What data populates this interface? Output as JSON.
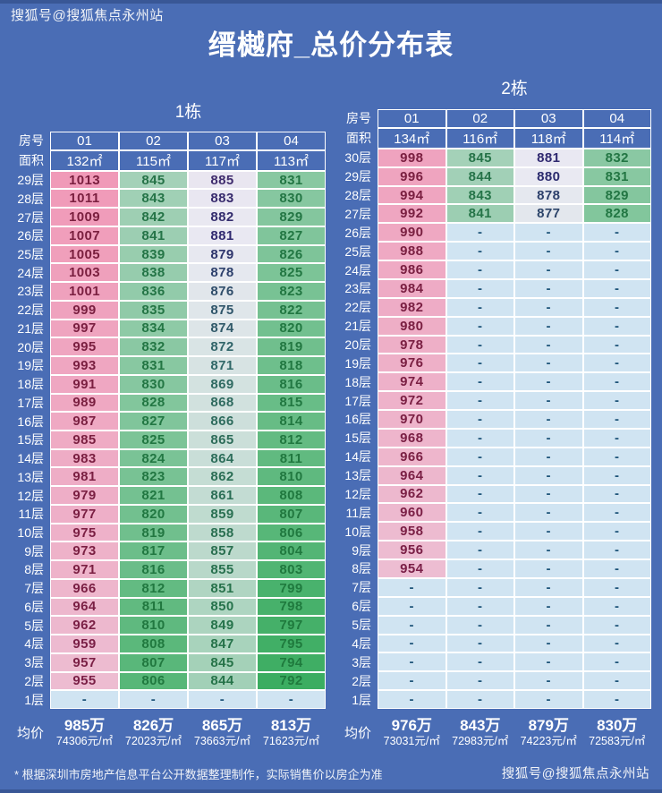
{
  "page": {
    "watermark_top": "搜狐号@搜狐焦点永州站",
    "title": "缙樾府_总价分布表",
    "footnote": "* 根据深圳市房地产信息平台公开数据整理制作，实际销售价以房企为准",
    "watermark_bottom": "搜狐号@搜狐焦点永州站",
    "background_color": "#4a6db5"
  },
  "color_scale": {
    "min_value": 792,
    "mid_value": 880,
    "max_value": 1013,
    "min_color": "#3bad61",
    "mid_color": "#e9e9f2",
    "max_color": "#f09ab8",
    "dash_bg": "#d0e4f2",
    "border_color": "#ffffff"
  },
  "chart_data": [
    {
      "type": "table",
      "name": "1栋",
      "row_header_label": "房号",
      "area_label": "面积",
      "avg_label": "均价",
      "rooms": [
        "01",
        "02",
        "03",
        "04"
      ],
      "areas": [
        "132㎡",
        "115㎡",
        "117㎡",
        "113㎡"
      ],
      "floors": [
        "29层",
        "28层",
        "27层",
        "26层",
        "25层",
        "24层",
        "23层",
        "22层",
        "21层",
        "20层",
        "19层",
        "18层",
        "17层",
        "16层",
        "15层",
        "14层",
        "13层",
        "12层",
        "11层",
        "10层",
        "9层",
        "8层",
        "7层",
        "6层",
        "5层",
        "4层",
        "3层",
        "2层",
        "1层"
      ],
      "values": [
        [
          1013,
          845,
          885,
          831
        ],
        [
          1011,
          843,
          883,
          830
        ],
        [
          1009,
          842,
          882,
          829
        ],
        [
          1007,
          841,
          881,
          827
        ],
        [
          1005,
          839,
          879,
          826
        ],
        [
          1003,
          838,
          878,
          825
        ],
        [
          1001,
          836,
          876,
          823
        ],
        [
          999,
          835,
          875,
          822
        ],
        [
          997,
          834,
          874,
          820
        ],
        [
          995,
          832,
          872,
          819
        ],
        [
          993,
          831,
          871,
          818
        ],
        [
          991,
          830,
          869,
          816
        ],
        [
          989,
          828,
          868,
          815
        ],
        [
          987,
          827,
          866,
          814
        ],
        [
          985,
          825,
          865,
          812
        ],
        [
          983,
          824,
          864,
          811
        ],
        [
          981,
          823,
          862,
          810
        ],
        [
          979,
          821,
          861,
          808
        ],
        [
          977,
          820,
          859,
          807
        ],
        [
          975,
          819,
          858,
          806
        ],
        [
          973,
          817,
          857,
          804
        ],
        [
          971,
          816,
          855,
          803
        ],
        [
          966,
          812,
          851,
          799
        ],
        [
          964,
          811,
          850,
          798
        ],
        [
          962,
          810,
          849,
          797
        ],
        [
          959,
          808,
          847,
          795
        ],
        [
          957,
          807,
          845,
          794
        ],
        [
          955,
          806,
          844,
          792
        ],
        [
          "-",
          "-",
          "-",
          "-"
        ]
      ],
      "averages": [
        {
          "price": "985万",
          "unit": "74306元/㎡"
        },
        {
          "price": "826万",
          "unit": "72023元/㎡"
        },
        {
          "price": "865万",
          "unit": "73663元/㎡"
        },
        {
          "price": "813万",
          "unit": "71623元/㎡"
        }
      ]
    },
    {
      "type": "table",
      "name": "2栋",
      "row_header_label": "房号",
      "area_label": "面积",
      "avg_label": "均价",
      "rooms": [
        "01",
        "02",
        "03",
        "04"
      ],
      "areas": [
        "134㎡",
        "116㎡",
        "118㎡",
        "114㎡"
      ],
      "floors": [
        "30层",
        "29层",
        "28层",
        "27层",
        "26层",
        "25层",
        "24层",
        "23层",
        "22层",
        "21层",
        "20层",
        "19层",
        "18层",
        "17层",
        "16层",
        "15层",
        "14层",
        "13层",
        "12层",
        "11层",
        "10层",
        "9层",
        "8层",
        "7层",
        "6层",
        "5层",
        "4层",
        "3层",
        "2层",
        "1层"
      ],
      "values": [
        [
          998,
          845,
          881,
          832
        ],
        [
          996,
          844,
          880,
          831
        ],
        [
          994,
          843,
          878,
          829
        ],
        [
          992,
          841,
          877,
          828
        ],
        [
          990,
          "-",
          "-",
          "-"
        ],
        [
          988,
          "-",
          "-",
          "-"
        ],
        [
          986,
          "-",
          "-",
          "-"
        ],
        [
          984,
          "-",
          "-",
          "-"
        ],
        [
          982,
          "-",
          "-",
          "-"
        ],
        [
          980,
          "-",
          "-",
          "-"
        ],
        [
          978,
          "-",
          "-",
          "-"
        ],
        [
          976,
          "-",
          "-",
          "-"
        ],
        [
          974,
          "-",
          "-",
          "-"
        ],
        [
          972,
          "-",
          "-",
          "-"
        ],
        [
          970,
          "-",
          "-",
          "-"
        ],
        [
          968,
          "-",
          "-",
          "-"
        ],
        [
          966,
          "-",
          "-",
          "-"
        ],
        [
          964,
          "-",
          "-",
          "-"
        ],
        [
          962,
          "-",
          "-",
          "-"
        ],
        [
          960,
          "-",
          "-",
          "-"
        ],
        [
          958,
          "-",
          "-",
          "-"
        ],
        [
          956,
          "-",
          "-",
          "-"
        ],
        [
          954,
          "-",
          "-",
          "-"
        ],
        [
          "-",
          "-",
          "-",
          "-"
        ],
        [
          "-",
          "-",
          "-",
          "-"
        ],
        [
          "-",
          "-",
          "-",
          "-"
        ],
        [
          "-",
          "-",
          "-",
          "-"
        ],
        [
          "-",
          "-",
          "-",
          "-"
        ],
        [
          "-",
          "-",
          "-",
          "-"
        ],
        [
          "-",
          "-",
          "-",
          "-"
        ]
      ],
      "averages": [
        {
          "price": "976万",
          "unit": "73031元/㎡"
        },
        {
          "price": "843万",
          "unit": "72983元/㎡"
        },
        {
          "price": "879万",
          "unit": "74223元/㎡"
        },
        {
          "price": "830万",
          "unit": "72583元/㎡"
        }
      ]
    }
  ]
}
